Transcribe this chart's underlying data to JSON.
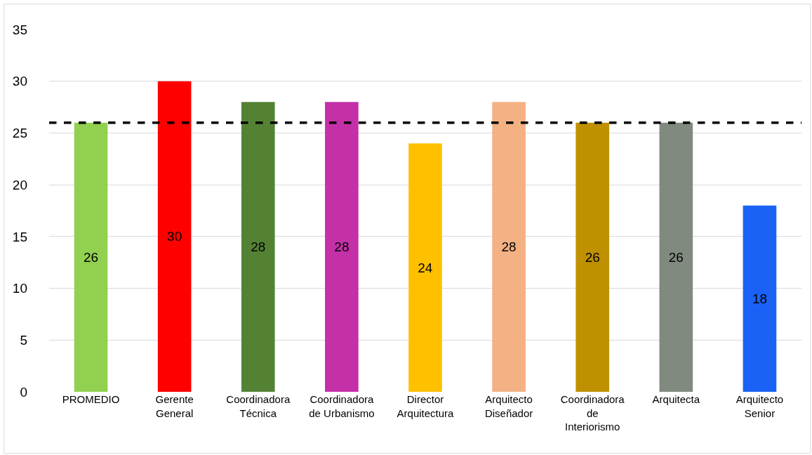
{
  "chart_data": {
    "type": "bar",
    "categories": [
      "PROMEDIO",
      "Gerente General",
      "Coordinadora Técnica",
      "Coordinadora de Urbanismo",
      "Director Arquitectura",
      "Arquitecto Diseñador",
      "Coordinadora de Interiorismo",
      "Arquitecta",
      "Arquitecto Senior"
    ],
    "values": [
      26,
      30,
      28,
      28,
      24,
      28,
      26,
      26,
      18
    ],
    "colors": [
      "#92d050",
      "#ff0000",
      "#548235",
      "#c430a8",
      "#ffc000",
      "#f4b183",
      "#bf9000",
      "#808a7f",
      "#1a62f5"
    ],
    "ylim": [
      0,
      35
    ],
    "yticks": [
      0,
      5,
      10,
      15,
      20,
      25,
      30,
      35
    ],
    "grid": "y",
    "data_labels": true,
    "ref_lines": [
      {
        "axis": "y",
        "value": 26,
        "color": "#000000",
        "line_style": "dashed"
      }
    ]
  }
}
